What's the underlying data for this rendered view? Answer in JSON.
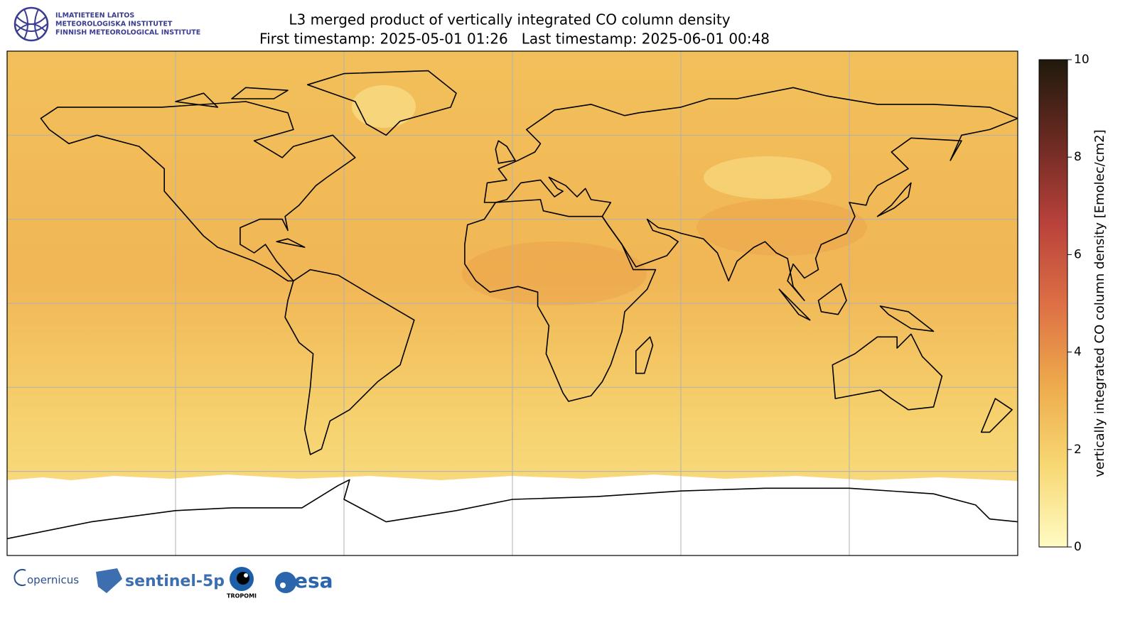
{
  "header": {
    "logo_lines": [
      "ILMATIETEEN LAITOS",
      "METEOROLOGISKA INSTITUTET",
      "FINNISH METEOROLOGICAL INSTITUTE"
    ],
    "title": "L3 merged product of vertically integrated CO column density",
    "subtitle": "First timestamp: 2025-05-01 01:26   Last timestamp: 2025-06-01 00:48"
  },
  "colorbar": {
    "label": "vertically integrated CO column density [Emolec/cm2]",
    "lim": [
      0,
      10
    ],
    "ticks": [
      0,
      2,
      4,
      6,
      8,
      10
    ],
    "colors": [
      "#fffbc4",
      "#f7d873",
      "#eeaa4c",
      "#dd6f45",
      "#b8413b",
      "#6b2a22",
      "#1f1a0c"
    ]
  },
  "footer": {
    "logos": [
      "opernicus",
      "sentinel-5p",
      "TROPOMI",
      "esa"
    ]
  }
}
